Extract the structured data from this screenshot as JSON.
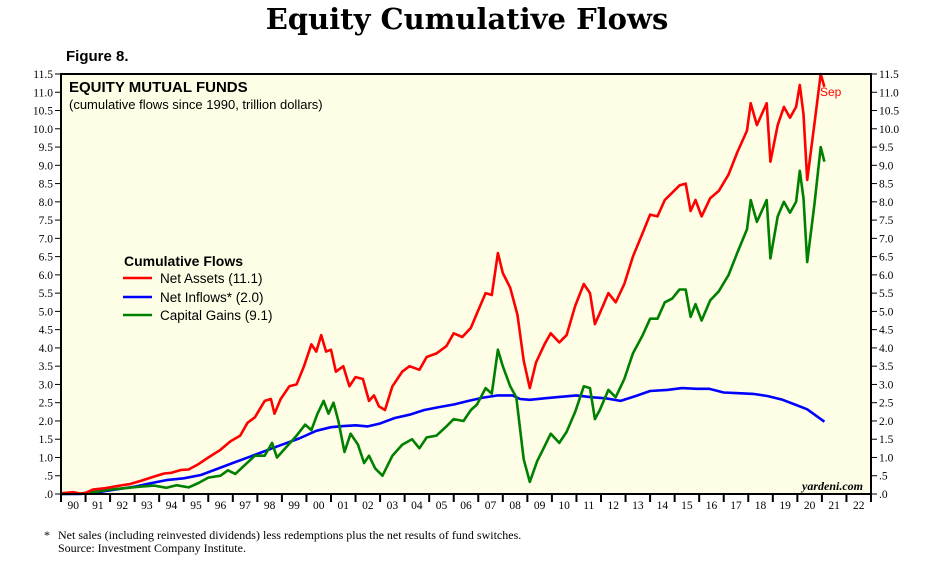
{
  "page": {
    "title": "Equity Cumulative Flows",
    "figure_label": "Figure 8.",
    "footnote": "Net sales (including reinvested dividends) less redemptions plus the net results of fund switches.",
    "footnote_marker": "*",
    "source": "Source: Investment Company Institute.",
    "watermark": "yardeni.com"
  },
  "chart_data": {
    "type": "line",
    "title": "EQUITY MUTUAL FUNDS",
    "subtitle": "(cumulative flows since 1990, trillion dollars)",
    "xlabel": "",
    "ylabel": "",
    "xlim": [
      1990,
      2023
    ],
    "ylim": [
      0,
      11.5
    ],
    "y_ticks": [
      ".0",
      ".5",
      "1.0",
      "1.5",
      "2.0",
      "2.5",
      "3.0",
      "3.5",
      "4.0",
      "4.5",
      "5.0",
      "5.5",
      "6.0",
      "6.5",
      "7.0",
      "7.5",
      "8.0",
      "8.5",
      "9.0",
      "9.5",
      "10.0",
      "10.5",
      "11.0",
      "11.5"
    ],
    "x_ticks": [
      "90",
      "91",
      "92",
      "93",
      "94",
      "95",
      "96",
      "97",
      "98",
      "99",
      "00",
      "01",
      "02",
      "03",
      "04",
      "05",
      "06",
      "07",
      "08",
      "09",
      "10",
      "11",
      "12",
      "13",
      "14",
      "15",
      "16",
      "17",
      "18",
      "19",
      "20",
      "21",
      "22"
    ],
    "grid": false,
    "background": "#fefee6",
    "legend_title": "Cumulative Flows",
    "legend_position": "center-left",
    "end_annotation": "Sep",
    "series": [
      {
        "name": "Net Assets (11.1)",
        "color": "#ff0000",
        "points": [
          [
            1990.0,
            0.02
          ],
          [
            1990.5,
            0.05
          ],
          [
            1990.8,
            0.01
          ],
          [
            1991.0,
            0.03
          ],
          [
            1991.3,
            0.12
          ],
          [
            1991.8,
            0.16
          ],
          [
            1992.3,
            0.22
          ],
          [
            1992.8,
            0.27
          ],
          [
            1993.3,
            0.37
          ],
          [
            1993.8,
            0.48
          ],
          [
            1994.2,
            0.56
          ],
          [
            1994.5,
            0.58
          ],
          [
            1994.9,
            0.66
          ],
          [
            1995.2,
            0.67
          ],
          [
            1995.6,
            0.82
          ],
          [
            1996.0,
            1.0
          ],
          [
            1996.5,
            1.21
          ],
          [
            1996.9,
            1.44
          ],
          [
            1997.3,
            1.6
          ],
          [
            1997.6,
            1.95
          ],
          [
            1997.9,
            2.1
          ],
          [
            1998.3,
            2.55
          ],
          [
            1998.55,
            2.6
          ],
          [
            1998.7,
            2.2
          ],
          [
            1998.95,
            2.6
          ],
          [
            1999.3,
            2.95
          ],
          [
            1999.6,
            3.0
          ],
          [
            1999.9,
            3.5
          ],
          [
            2000.2,
            4.1
          ],
          [
            2000.4,
            3.9
          ],
          [
            2000.6,
            4.35
          ],
          [
            2000.8,
            3.9
          ],
          [
            2001.0,
            3.95
          ],
          [
            2001.2,
            3.35
          ],
          [
            2001.5,
            3.5
          ],
          [
            2001.75,
            2.95
          ],
          [
            2002.0,
            3.2
          ],
          [
            2002.3,
            3.15
          ],
          [
            2002.55,
            2.55
          ],
          [
            2002.75,
            2.7
          ],
          [
            2002.95,
            2.4
          ],
          [
            2003.2,
            2.3
          ],
          [
            2003.5,
            2.95
          ],
          [
            2003.9,
            3.35
          ],
          [
            2004.2,
            3.5
          ],
          [
            2004.6,
            3.4
          ],
          [
            2004.9,
            3.75
          ],
          [
            2005.3,
            3.85
          ],
          [
            2005.7,
            4.05
          ],
          [
            2006.0,
            4.4
          ],
          [
            2006.35,
            4.3
          ],
          [
            2006.7,
            4.55
          ],
          [
            2006.95,
            4.95
          ],
          [
            2007.3,
            5.5
          ],
          [
            2007.55,
            5.45
          ],
          [
            2007.8,
            6.6
          ],
          [
            2008.0,
            6.05
          ],
          [
            2008.3,
            5.65
          ],
          [
            2008.6,
            4.9
          ],
          [
            2008.85,
            3.65
          ],
          [
            2009.1,
            2.9
          ],
          [
            2009.35,
            3.6
          ],
          [
            2009.7,
            4.1
          ],
          [
            2009.95,
            4.4
          ],
          [
            2010.3,
            4.15
          ],
          [
            2010.6,
            4.35
          ],
          [
            2010.95,
            5.15
          ],
          [
            2011.3,
            5.75
          ],
          [
            2011.55,
            5.5
          ],
          [
            2011.75,
            4.65
          ],
          [
            2011.95,
            4.95
          ],
          [
            2012.3,
            5.5
          ],
          [
            2012.6,
            5.25
          ],
          [
            2012.95,
            5.75
          ],
          [
            2013.3,
            6.5
          ],
          [
            2013.7,
            7.15
          ],
          [
            2014.0,
            7.65
          ],
          [
            2014.3,
            7.6
          ],
          [
            2014.6,
            8.05
          ],
          [
            2014.9,
            8.25
          ],
          [
            2015.2,
            8.45
          ],
          [
            2015.45,
            8.5
          ],
          [
            2015.65,
            7.75
          ],
          [
            2015.85,
            8.05
          ],
          [
            2016.1,
            7.6
          ],
          [
            2016.45,
            8.1
          ],
          [
            2016.8,
            8.3
          ],
          [
            2017.2,
            8.75
          ],
          [
            2017.55,
            9.35
          ],
          [
            2017.95,
            9.95
          ],
          [
            2018.1,
            10.7
          ],
          [
            2018.35,
            10.1
          ],
          [
            2018.75,
            10.7
          ],
          [
            2018.9,
            9.1
          ],
          [
            2019.2,
            10.1
          ],
          [
            2019.45,
            10.6
          ],
          [
            2019.7,
            10.3
          ],
          [
            2019.95,
            10.6
          ],
          [
            2020.1,
            11.2
          ],
          [
            2020.25,
            10.4
          ],
          [
            2020.4,
            8.6
          ],
          [
            2020.7,
            10.15
          ],
          [
            2020.95,
            11.5
          ],
          [
            2021.1,
            11.15
          ]
        ]
      },
      {
        "name": "Net Inflows* (2.0)",
        "color": "#0000ff",
        "points": [
          [
            1990.0,
            0.0
          ],
          [
            1990.8,
            0.0
          ],
          [
            1991.5,
            0.05
          ],
          [
            1992.2,
            0.12
          ],
          [
            1993.0,
            0.2
          ],
          [
            1993.7,
            0.3
          ],
          [
            1994.3,
            0.38
          ],
          [
            1995.0,
            0.43
          ],
          [
            1995.7,
            0.52
          ],
          [
            1996.3,
            0.67
          ],
          [
            1997.0,
            0.85
          ],
          [
            1997.7,
            1.02
          ],
          [
            1998.4,
            1.2
          ],
          [
            1999.0,
            1.35
          ],
          [
            1999.7,
            1.52
          ],
          [
            2000.4,
            1.73
          ],
          [
            2001.0,
            1.83
          ],
          [
            2001.5,
            1.86
          ],
          [
            2002.0,
            1.88
          ],
          [
            2002.5,
            1.85
          ],
          [
            2003.0,
            1.93
          ],
          [
            2003.6,
            2.08
          ],
          [
            2004.2,
            2.17
          ],
          [
            2004.8,
            2.3
          ],
          [
            2005.4,
            2.38
          ],
          [
            2006.0,
            2.45
          ],
          [
            2006.6,
            2.55
          ],
          [
            2007.2,
            2.64
          ],
          [
            2007.8,
            2.7
          ],
          [
            2008.4,
            2.7
          ],
          [
            2008.7,
            2.6
          ],
          [
            2009.1,
            2.58
          ],
          [
            2009.7,
            2.62
          ],
          [
            2010.3,
            2.66
          ],
          [
            2011.0,
            2.7
          ],
          [
            2011.6,
            2.65
          ],
          [
            2012.2,
            2.62
          ],
          [
            2012.8,
            2.55
          ],
          [
            2013.4,
            2.68
          ],
          [
            2014.0,
            2.82
          ],
          [
            2014.7,
            2.85
          ],
          [
            2015.3,
            2.9
          ],
          [
            2015.9,
            2.88
          ],
          [
            2016.4,
            2.88
          ],
          [
            2017.0,
            2.78
          ],
          [
            2017.6,
            2.76
          ],
          [
            2018.2,
            2.74
          ],
          [
            2018.8,
            2.68
          ],
          [
            2019.4,
            2.58
          ],
          [
            2019.9,
            2.45
          ],
          [
            2020.4,
            2.32
          ],
          [
            2021.1,
            1.98
          ]
        ]
      },
      {
        "name": "Capital Gains (9.1)",
        "color": "#008000",
        "points": [
          [
            1990.0,
            0.0
          ],
          [
            1990.8,
            0.01
          ],
          [
            1991.4,
            0.06
          ],
          [
            1992.0,
            0.12
          ],
          [
            1992.6,
            0.16
          ],
          [
            1993.2,
            0.2
          ],
          [
            1993.8,
            0.23
          ],
          [
            1994.3,
            0.17
          ],
          [
            1994.7,
            0.24
          ],
          [
            1995.2,
            0.18
          ],
          [
            1995.6,
            0.3
          ],
          [
            1996.0,
            0.45
          ],
          [
            1996.5,
            0.5
          ],
          [
            1996.8,
            0.65
          ],
          [
            1997.1,
            0.55
          ],
          [
            1997.5,
            0.8
          ],
          [
            1997.9,
            1.05
          ],
          [
            1998.3,
            1.05
          ],
          [
            1998.6,
            1.4
          ],
          [
            1998.8,
            1.0
          ],
          [
            1999.2,
            1.3
          ],
          [
            1999.6,
            1.6
          ],
          [
            1999.95,
            1.9
          ],
          [
            2000.2,
            1.75
          ],
          [
            2000.45,
            2.2
          ],
          [
            2000.7,
            2.55
          ],
          [
            2000.9,
            2.2
          ],
          [
            2001.1,
            2.5
          ],
          [
            2001.3,
            2.0
          ],
          [
            2001.55,
            1.15
          ],
          [
            2001.8,
            1.65
          ],
          [
            2002.1,
            1.35
          ],
          [
            2002.35,
            0.85
          ],
          [
            2002.55,
            1.05
          ],
          [
            2002.8,
            0.7
          ],
          [
            2003.1,
            0.5
          ],
          [
            2003.5,
            1.05
          ],
          [
            2003.9,
            1.35
          ],
          [
            2004.3,
            1.5
          ],
          [
            2004.6,
            1.25
          ],
          [
            2004.9,
            1.55
          ],
          [
            2005.3,
            1.6
          ],
          [
            2005.7,
            1.85
          ],
          [
            2006.0,
            2.05
          ],
          [
            2006.4,
            2.0
          ],
          [
            2006.7,
            2.3
          ],
          [
            2006.95,
            2.45
          ],
          [
            2007.3,
            2.9
          ],
          [
            2007.55,
            2.75
          ],
          [
            2007.8,
            3.95
          ],
          [
            2008.0,
            3.5
          ],
          [
            2008.3,
            2.95
          ],
          [
            2008.55,
            2.65
          ],
          [
            2008.85,
            0.95
          ],
          [
            2009.1,
            0.33
          ],
          [
            2009.4,
            0.9
          ],
          [
            2009.7,
            1.3
          ],
          [
            2009.95,
            1.65
          ],
          [
            2010.3,
            1.4
          ],
          [
            2010.6,
            1.7
          ],
          [
            2010.95,
            2.25
          ],
          [
            2011.3,
            2.95
          ],
          [
            2011.55,
            2.9
          ],
          [
            2011.75,
            2.05
          ],
          [
            2011.95,
            2.3
          ],
          [
            2012.3,
            2.85
          ],
          [
            2012.6,
            2.65
          ],
          [
            2012.95,
            3.15
          ],
          [
            2013.3,
            3.85
          ],
          [
            2013.7,
            4.35
          ],
          [
            2014.0,
            4.8
          ],
          [
            2014.3,
            4.8
          ],
          [
            2014.6,
            5.25
          ],
          [
            2014.9,
            5.35
          ],
          [
            2015.2,
            5.6
          ],
          [
            2015.45,
            5.6
          ],
          [
            2015.65,
            4.85
          ],
          [
            2015.85,
            5.2
          ],
          [
            2016.1,
            4.75
          ],
          [
            2016.45,
            5.3
          ],
          [
            2016.8,
            5.55
          ],
          [
            2017.2,
            6.0
          ],
          [
            2017.55,
            6.6
          ],
          [
            2017.95,
            7.25
          ],
          [
            2018.1,
            8.05
          ],
          [
            2018.35,
            7.45
          ],
          [
            2018.75,
            8.05
          ],
          [
            2018.9,
            6.45
          ],
          [
            2019.2,
            7.6
          ],
          [
            2019.45,
            8.0
          ],
          [
            2019.7,
            7.7
          ],
          [
            2019.95,
            8.0
          ],
          [
            2020.1,
            8.85
          ],
          [
            2020.25,
            8.1
          ],
          [
            2020.4,
            6.35
          ],
          [
            2020.7,
            7.95
          ],
          [
            2020.95,
            9.5
          ],
          [
            2021.1,
            9.1
          ]
        ]
      }
    ]
  }
}
